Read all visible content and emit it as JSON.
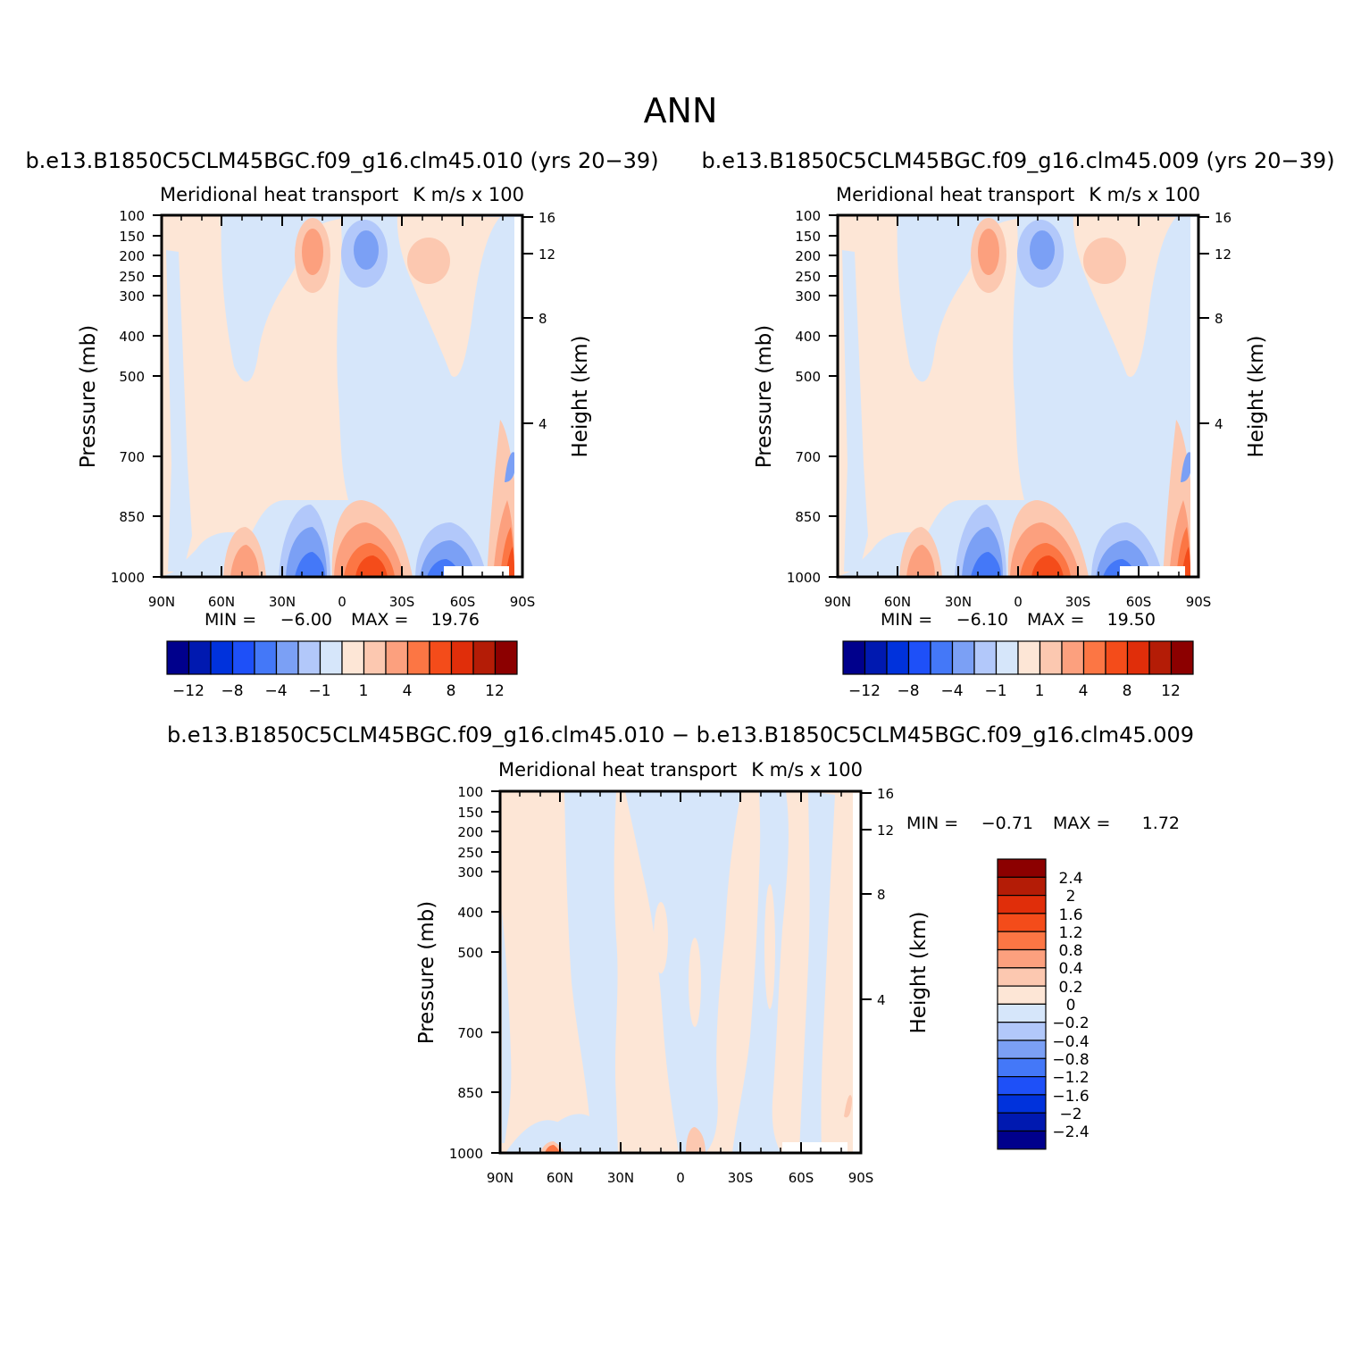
{
  "figure_title": "ANN",
  "chart_data": [
    {
      "id": "panel1",
      "type": "heatmap",
      "title": "b.e13.B1850C5CLM45BGC.f09_g16.clm45.010 (yrs 20−39)",
      "left_label": "Meridional heat transport",
      "right_label": "K m/s x 100",
      "ylabel": "Pressure (mb)",
      "ylabel_right": "Height (km)",
      "x_ticks": [
        "90N",
        "60N",
        "30N",
        "0",
        "30S",
        "60S",
        "90S"
      ],
      "y_ticks": [
        "100",
        "150",
        "200",
        "250",
        "300",
        "400",
        "500",
        "700",
        "850",
        "1000"
      ],
      "y_ticks_right": [
        "16",
        "12",
        "8",
        "4"
      ],
      "stats": {
        "min_label": "MIN =",
        "min": "−6.00",
        "max_label": "MAX =",
        "max": "19.76"
      },
      "colorbar": {
        "orientation": "horizontal",
        "levels": [
          "−12",
          "−10",
          "−8",
          "−6",
          "−4",
          "−2",
          "−1",
          "0",
          "1",
          "2",
          "4",
          "6",
          "8",
          "10",
          "12"
        ],
        "labels": [
          "−12",
          "−8",
          "−4",
          "−1",
          "1",
          "4",
          "8",
          "12"
        ]
      },
      "features": [
        {
          "lat": -15,
          "p": 190,
          "value": -4
        },
        {
          "lat": 15,
          "p": 190,
          "value": 6
        },
        {
          "lat": -40,
          "p": 220,
          "value": 2
        },
        {
          "lat": -15,
          "p": 950,
          "value": 10
        },
        {
          "lat": 15,
          "p": 950,
          "value": -6
        },
        {
          "lat": 45,
          "p": 960,
          "value": 4
        },
        {
          "lat": -55,
          "p": 960,
          "value": -4
        },
        {
          "lat": -85,
          "p": 950,
          "value": 12
        }
      ]
    },
    {
      "id": "panel2",
      "type": "heatmap",
      "title": "b.e13.B1850C5CLM45BGC.f09_g16.clm45.009 (yrs 20−39)",
      "left_label": "Meridional heat transport",
      "right_label": "K m/s x 100",
      "ylabel": "Pressure (mb)",
      "ylabel_right": "Height (km)",
      "x_ticks": [
        "90N",
        "60N",
        "30N",
        "0",
        "30S",
        "60S",
        "90S"
      ],
      "y_ticks": [
        "100",
        "150",
        "200",
        "250",
        "300",
        "400",
        "500",
        "700",
        "850",
        "1000"
      ],
      "y_ticks_right": [
        "16",
        "12",
        "8",
        "4"
      ],
      "stats": {
        "min_label": "MIN =",
        "min": "−6.10",
        "max_label": "MAX =",
        "max": "19.50"
      },
      "colorbar": {
        "orientation": "horizontal",
        "levels": [
          "−12",
          "−10",
          "−8",
          "−6",
          "−4",
          "−2",
          "−1",
          "0",
          "1",
          "2",
          "4",
          "6",
          "8",
          "10",
          "12"
        ],
        "labels": [
          "−12",
          "−8",
          "−4",
          "−1",
          "1",
          "4",
          "8",
          "12"
        ]
      },
      "features": [
        {
          "lat": -15,
          "p": 190,
          "value": -4
        },
        {
          "lat": 15,
          "p": 190,
          "value": 6
        },
        {
          "lat": -40,
          "p": 220,
          "value": 2
        },
        {
          "lat": -15,
          "p": 950,
          "value": 10
        },
        {
          "lat": 15,
          "p": 950,
          "value": -6
        },
        {
          "lat": 45,
          "p": 960,
          "value": 4
        },
        {
          "lat": -55,
          "p": 960,
          "value": -4
        },
        {
          "lat": -85,
          "p": 950,
          "value": 12
        }
      ]
    },
    {
      "id": "panel3",
      "type": "heatmap",
      "title": "b.e13.B1850C5CLM45BGC.f09_g16.clm45.010 − b.e13.B1850C5CLM45BGC.f09_g16.clm45.009",
      "left_label": "Meridional heat transport",
      "right_label": "K m/s x 100",
      "ylabel": "Pressure (mb)",
      "ylabel_right": "Height (km)",
      "x_ticks": [
        "90N",
        "60N",
        "30N",
        "0",
        "30S",
        "60S",
        "90S"
      ],
      "y_ticks": [
        "100",
        "150",
        "200",
        "250",
        "300",
        "400",
        "500",
        "700",
        "850",
        "1000"
      ],
      "y_ticks_right": [
        "16",
        "12",
        "8",
        "4"
      ],
      "stats": {
        "min_label": "MIN =",
        "min": "−0.71",
        "max_label": "MAX =",
        "max": "1.72"
      },
      "colorbar": {
        "orientation": "vertical",
        "levels": [
          "2.4",
          "2",
          "1.6",
          "1.2",
          "0.8",
          "0.4",
          "0.2",
          "0",
          "−0.2",
          "−0.4",
          "−0.8",
          "−1.2",
          "−1.6",
          "−2",
          "−2.4"
        ],
        "labels": [
          "2.4",
          "2",
          "1.6",
          "1.2",
          "0.8",
          "0.4",
          "0.2",
          "0",
          "−0.2",
          "−0.4",
          "−0.8",
          "−1.2",
          "−1.6",
          "−2",
          "−2.4"
        ]
      },
      "features": [
        {
          "lat": 55,
          "p": 990,
          "value": 1.6
        },
        {
          "lat": 0,
          "p": 980,
          "value": 0.4
        }
      ]
    }
  ],
  "colors": {
    "scale": [
      "#00008c",
      "#0019b0",
      "#0032dc",
      "#1e50f8",
      "#4478f8",
      "#7ba0f5",
      "#b2c8fa",
      "#d6e6fa",
      "#fde6d6",
      "#fcc8b0",
      "#fca07e",
      "#fc7644",
      "#f44c1a",
      "#e02e0a",
      "#b41c06",
      "#8c0000"
    ],
    "scale_vertical": [
      "#8c0000",
      "#b41c06",
      "#e02e0a",
      "#f44c1a",
      "#fc7644",
      "#fca07e",
      "#fcc8b0",
      "#fde6d6",
      "#d6e6fa",
      "#b2c8fa",
      "#7ba0f5",
      "#4478f8",
      "#1e50f8",
      "#0032dc",
      "#0019b0",
      "#00008c"
    ],
    "bg_pos": "#fde6d6",
    "bg_neg": "#d6e6fa"
  }
}
